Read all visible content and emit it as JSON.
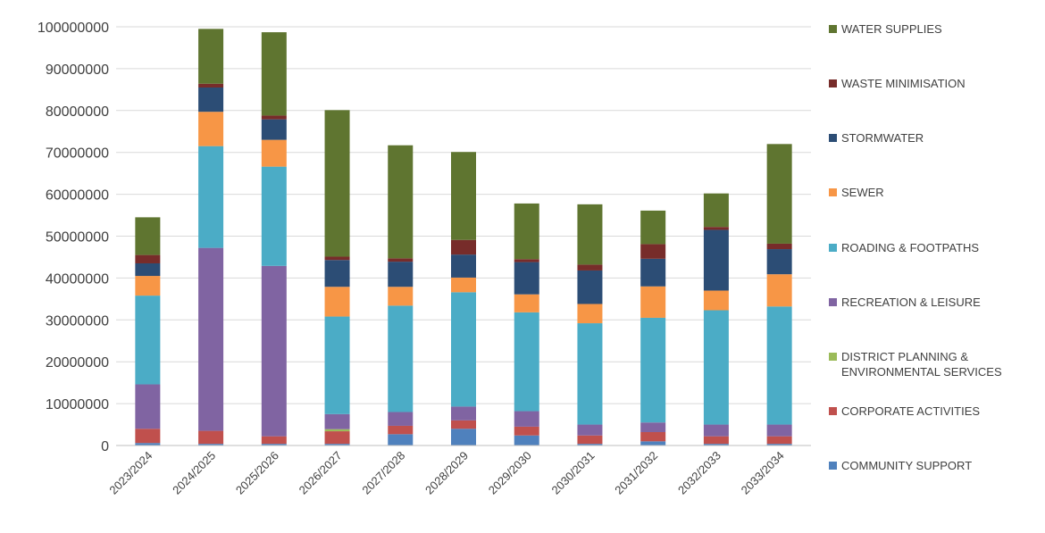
{
  "chart_data": {
    "type": "bar",
    "stacked": true,
    "title": "",
    "xlabel": "",
    "ylabel": "",
    "ylim": [
      0,
      100000000
    ],
    "yticks": [
      0,
      10000000,
      20000000,
      30000000,
      40000000,
      50000000,
      60000000,
      70000000,
      80000000,
      90000000,
      100000000
    ],
    "ytick_labels": [
      "0",
      "10000000",
      "20000000",
      "30000000",
      "40000000",
      "50000000",
      "60000000",
      "70000000",
      "80000000",
      "90000000",
      "100000000"
    ],
    "grid": true,
    "legend_position": "right",
    "categories": [
      "2023/2024",
      "2024/2025",
      "2025/2026",
      "2026/2027",
      "2027/2028",
      "2028/2029",
      "2029/2030",
      "2030/2031",
      "2031/2032",
      "2032/2033",
      "2033/2034"
    ],
    "series": [
      {
        "name": "COMMUNITY SUPPORT",
        "color": "#4F81BD",
        "values": [
          600000,
          400000,
          400000,
          400000,
          2700000,
          4000000,
          2400000,
          400000,
          1000000,
          400000,
          400000
        ]
      },
      {
        "name": "CORPORATE ACTIVITIES",
        "color": "#C0504D",
        "values": [
          3400000,
          3100000,
          1800000,
          3000000,
          2000000,
          2000000,
          2100000,
          2000000,
          2200000,
          1800000,
          1800000
        ]
      },
      {
        "name": "DISTRICT PLANNING & ENVIRONMENTAL SERVICES",
        "color": "#9BBB59",
        "values": [
          0,
          0,
          0,
          500000,
          0,
          0,
          0,
          0,
          0,
          0,
          0
        ]
      },
      {
        "name": "RECREATION & LEISURE",
        "color": "#8064A2",
        "values": [
          10600000,
          43700000,
          40700000,
          3600000,
          3300000,
          3300000,
          3700000,
          2600000,
          2300000,
          2800000,
          2800000
        ]
      },
      {
        "name": "ROADING & FOOTPATHS",
        "color": "#4BACC6",
        "values": [
          21200000,
          24300000,
          23700000,
          23300000,
          25400000,
          27300000,
          23600000,
          24200000,
          25000000,
          27300000,
          28200000
        ]
      },
      {
        "name": "SEWER",
        "color": "#F79646",
        "values": [
          4700000,
          8200000,
          6400000,
          7100000,
          4500000,
          3500000,
          4300000,
          4600000,
          7500000,
          4700000,
          7700000
        ]
      },
      {
        "name": "STORMWATER",
        "color": "#2C4D75",
        "values": [
          3000000,
          5800000,
          4900000,
          6400000,
          6000000,
          5500000,
          7700000,
          8000000,
          6600000,
          14500000,
          6000000
        ]
      },
      {
        "name": "WASTE MINIMISATION",
        "color": "#772C2A",
        "values": [
          2000000,
          900000,
          900000,
          800000,
          800000,
          3500000,
          700000,
          1400000,
          3500000,
          700000,
          1300000
        ]
      },
      {
        "name": "WATER SUPPLIES",
        "color": "#5F7530",
        "values": [
          9000000,
          13100000,
          19900000,
          35000000,
          27000000,
          21000000,
          13300000,
          14400000,
          8000000,
          8000000,
          23800000
        ]
      }
    ]
  }
}
